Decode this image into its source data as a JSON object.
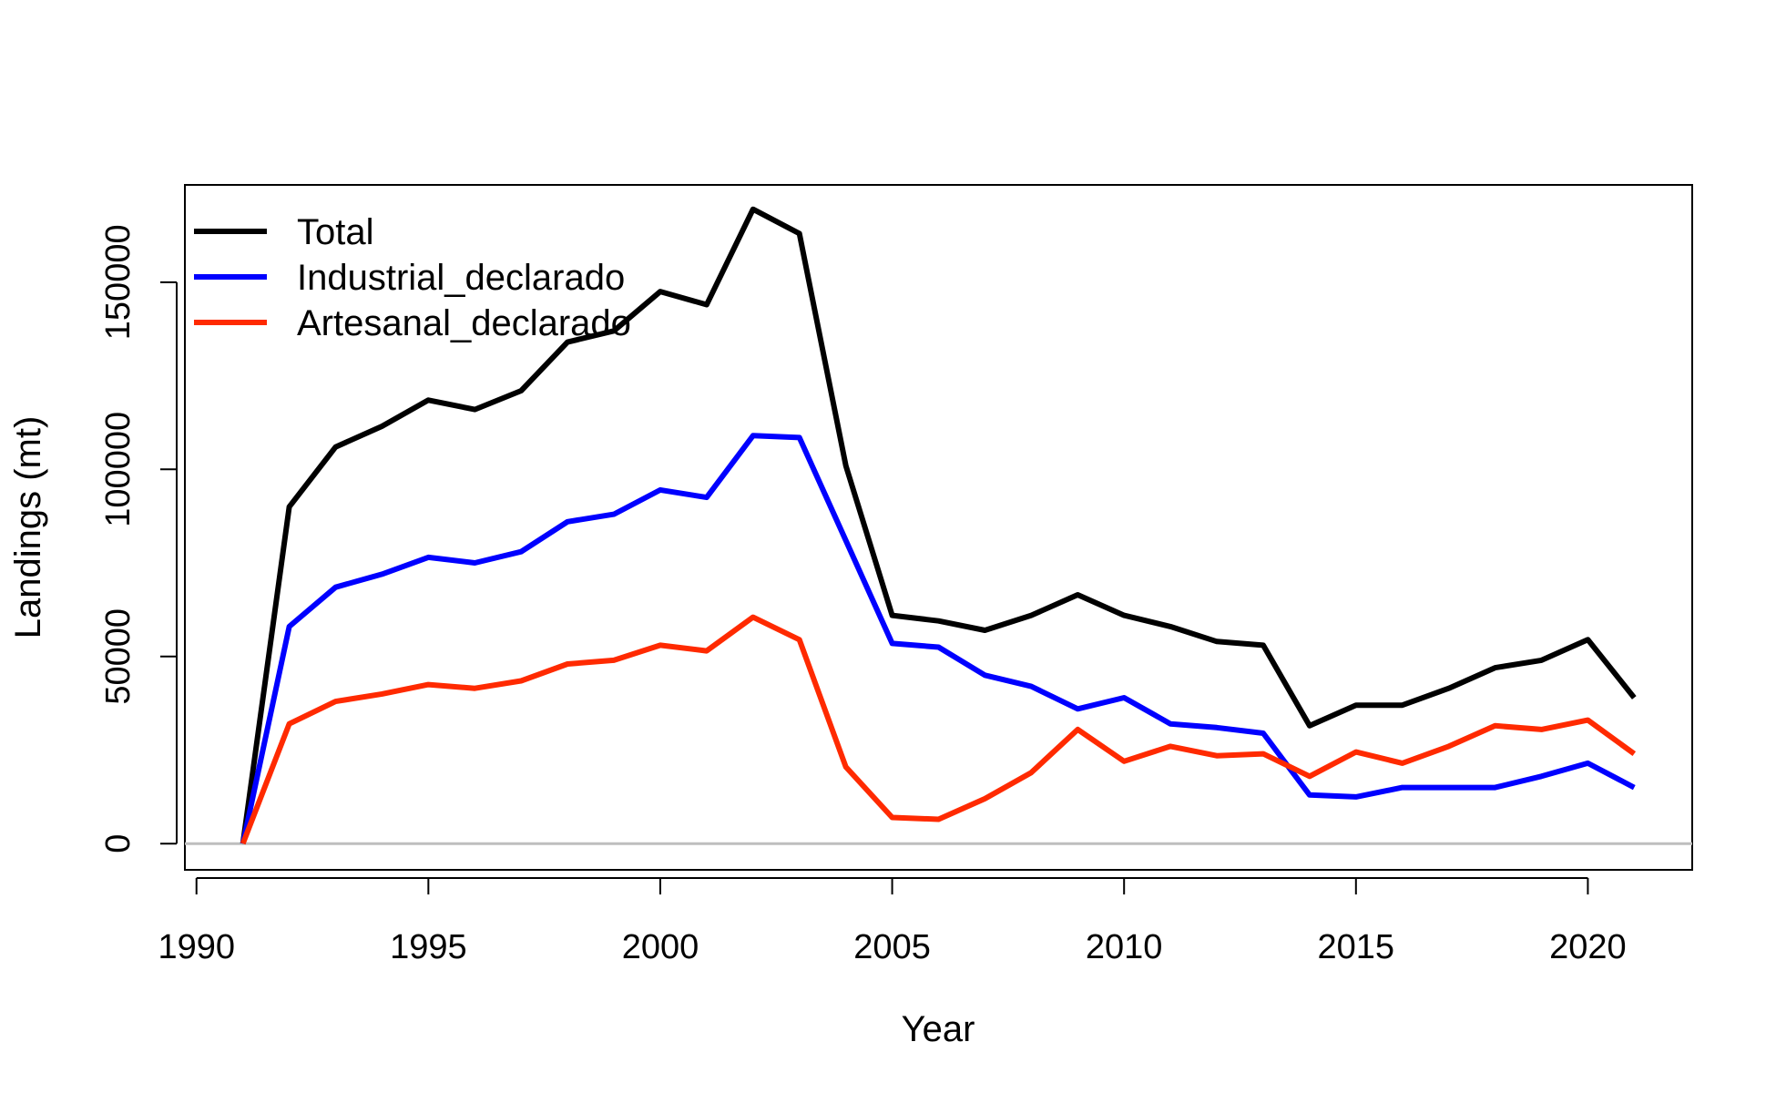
{
  "chart_data": {
    "type": "line",
    "title": "",
    "xlabel": "Year",
    "ylabel": "Landings (mt)",
    "xlim": [
      1989.75,
      2022.25
    ],
    "ylim": [
      -7000,
      176000
    ],
    "x_ticks": [
      1990,
      1995,
      2000,
      2005,
      2010,
      2015,
      2020
    ],
    "y_ticks": [
      0,
      50000,
      100000,
      150000
    ],
    "grid": false,
    "reference_line": {
      "y": 0,
      "color": "#bebebe"
    },
    "legend": {
      "position": "top-left"
    },
    "x": [
      1991,
      1992,
      1993,
      1994,
      1995,
      1996,
      1997,
      1998,
      1999,
      2000,
      2001,
      2002,
      2003,
      2004,
      2005,
      2006,
      2007,
      2008,
      2009,
      2010,
      2011,
      2012,
      2013,
      2014,
      2015,
      2016,
      2017,
      2018,
      2019,
      2020,
      2021
    ],
    "series": [
      {
        "name": "Total",
        "color": "#000000",
        "values": [
          0,
          90000,
          106000,
          111500,
          118500,
          116000,
          121000,
          134000,
          137000,
          147500,
          144000,
          169500,
          163000,
          101000,
          61000,
          59500,
          57000,
          61000,
          66500,
          61000,
          58000,
          54000,
          53000,
          31500,
          37000,
          37000,
          41500,
          47000,
          49000,
          54500,
          39000
        ]
      },
      {
        "name": "Industrial_declarado",
        "color": "#0000ff",
        "values": [
          0,
          58000,
          68500,
          72000,
          76500,
          75000,
          78000,
          86000,
          88000,
          94500,
          92500,
          109000,
          108500,
          81000,
          53500,
          52500,
          45000,
          42000,
          36000,
          39000,
          32000,
          31000,
          29500,
          13000,
          12500,
          15000,
          15000,
          15000,
          18000,
          21500,
          15000
        ]
      },
      {
        "name": "Artesanal_declarado",
        "color": "#ff2a00",
        "values": [
          0,
          32000,
          38000,
          40000,
          42500,
          41500,
          43500,
          48000,
          49000,
          53000,
          51500,
          60500,
          54500,
          20500,
          7000,
          6500,
          12000,
          19000,
          30500,
          22000,
          26000,
          23500,
          24000,
          18000,
          24500,
          21500,
          26000,
          31500,
          30500,
          33000,
          24000
        ]
      }
    ]
  }
}
